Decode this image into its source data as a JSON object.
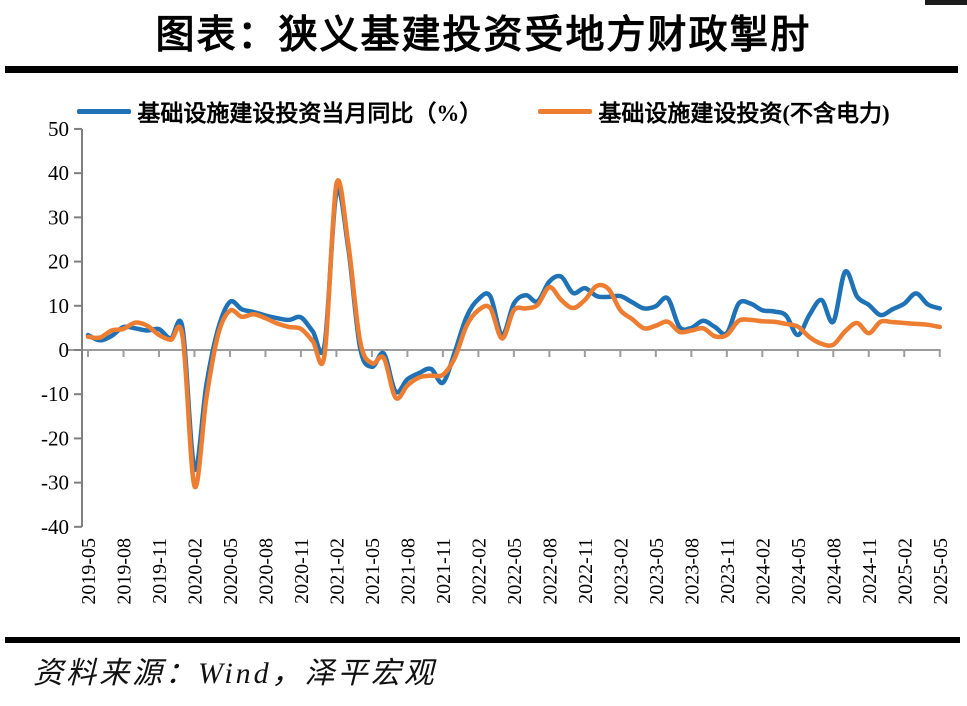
{
  "page": {
    "source_note": "资料来源：Wind，泽平宏观"
  },
  "chart_data": {
    "type": "line",
    "title": "图表：狭义基建投资受地方财政掣肘",
    "legend_position": "top",
    "grid": false,
    "ylim": [
      -40,
      50
    ],
    "y_ticks": [
      50,
      40,
      30,
      20,
      10,
      0,
      -10,
      -20,
      -30,
      -40
    ],
    "axis_color": "#7f7f7f",
    "zero_line_color": "#9c9c9c",
    "x": [
      "2019-05",
      "2019-06",
      "2019-07",
      "2019-08",
      "2019-09",
      "2019-10",
      "2019-11",
      "2019-12",
      "2020-01",
      "2020-02",
      "2020-03",
      "2020-04",
      "2020-05",
      "2020-06",
      "2020-07",
      "2020-08",
      "2020-09",
      "2020-10",
      "2020-11",
      "2020-12",
      "2021-01",
      "2021-02",
      "2021-03",
      "2021-04",
      "2021-05",
      "2021-06",
      "2021-07",
      "2021-08",
      "2021-09",
      "2021-10",
      "2021-11",
      "2021-12",
      "2022-01",
      "2022-02",
      "2022-03",
      "2022-04",
      "2022-05",
      "2022-06",
      "2022-07",
      "2022-08",
      "2022-09",
      "2022-10",
      "2022-11",
      "2022-12",
      "2023-01",
      "2023-02",
      "2023-03",
      "2023-04",
      "2023-05",
      "2023-06",
      "2023-07",
      "2023-08",
      "2023-09",
      "2023-10",
      "2023-11",
      "2023-12",
      "2024-01",
      "2024-02",
      "2024-03",
      "2024-04",
      "2024-05",
      "2024-06",
      "2024-07",
      "2024-08",
      "2024-09",
      "2024-10",
      "2024-11",
      "2024-12",
      "2025-01",
      "2025-02",
      "2025-03",
      "2025-04",
      "2025-05"
    ],
    "x_tick_labels": [
      "2019-05",
      "2019-08",
      "2019-11",
      "2020-02",
      "2020-05",
      "2020-08",
      "2020-11",
      "2021-02",
      "2021-05",
      "2021-08",
      "2021-11",
      "2022-02",
      "2022-05",
      "2022-08",
      "2022-11",
      "2023-02",
      "2023-05",
      "2023-08",
      "2023-11",
      "2024-02",
      "2024-05",
      "2024-08",
      "2024-11",
      "2025-02",
      "2025-05"
    ],
    "series": [
      {
        "name": "基础设施建设投资当月同比（%）",
        "color": "#1F72B5",
        "values": [
          3.4,
          2.2,
          3.2,
          5.2,
          4.9,
          4.4,
          4.7,
          2.6,
          4.9,
          -26.9,
          -8.0,
          4.8,
          10.9,
          9.2,
          8.6,
          7.8,
          7.2,
          6.8,
          7.4,
          4.2,
          1.2,
          35.6,
          23.0,
          0.5,
          -3.8,
          -0.8,
          -9.4,
          -6.6,
          -5.2,
          -4.3,
          -7.4,
          -0.5,
          7.5,
          11.5,
          12.2,
          3.4,
          10.5,
          12.4,
          11.0,
          15.5,
          16.6,
          12.9,
          14.0,
          12.2,
          12.0,
          12.2,
          10.8,
          9.4,
          9.9,
          11.7,
          5.2,
          5.0,
          6.6,
          5.2,
          3.8,
          10.5,
          10.5,
          9.0,
          8.7,
          7.8,
          3.4,
          8.0,
          11.3,
          6.4,
          17.7,
          12.1,
          10.2,
          7.9,
          9.2,
          10.5,
          12.8,
          10.3,
          9.4
        ]
      },
      {
        "name": "基础设施建设投资(不含电力)",
        "color": "#ED7D31",
        "values": [
          3.0,
          2.8,
          4.4,
          4.8,
          6.2,
          5.5,
          3.4,
          2.3,
          3.0,
          -30.8,
          -11.0,
          3.5,
          8.9,
          7.5,
          8.1,
          7.2,
          6.0,
          5.2,
          4.8,
          2.0,
          -1.0,
          37.5,
          24.0,
          2.0,
          -3.0,
          -1.8,
          -10.8,
          -8.0,
          -6.2,
          -5.8,
          -5.6,
          -1.8,
          5.5,
          9.0,
          9.5,
          2.6,
          9.0,
          9.4,
          10.2,
          14.2,
          11.3,
          9.5,
          11.3,
          14.5,
          13.8,
          9.0,
          7.0,
          4.9,
          5.5,
          6.4,
          4.1,
          4.4,
          4.9,
          3.1,
          3.4,
          6.6,
          6.8,
          6.5,
          6.4,
          5.9,
          5.3,
          2.9,
          1.4,
          1.2,
          4.2,
          6.1,
          3.8,
          6.4,
          6.3,
          6.1,
          5.9,
          5.7,
          5.2
        ]
      }
    ]
  }
}
